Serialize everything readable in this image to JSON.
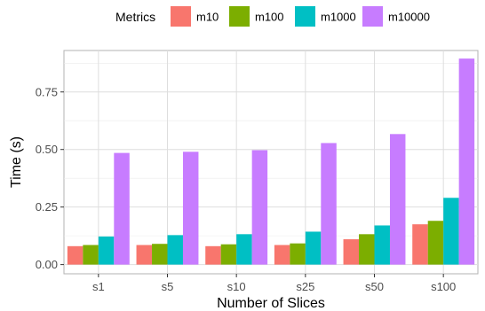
{
  "chart_data": {
    "type": "bar",
    "xlabel": "Number of Slices",
    "ylabel": "Time (s)",
    "categories": [
      "s1",
      "s5",
      "s10",
      "s25",
      "s50",
      "s100"
    ],
    "ylim": [
      -0.04,
      0.93
    ],
    "yticks": [
      0.0,
      0.25,
      0.5,
      0.75
    ],
    "ytick_labels": [
      "0.00",
      "0.25",
      "0.50",
      "0.75"
    ],
    "grid": true,
    "legend": {
      "title": "Metrics",
      "position": "top"
    },
    "series": [
      {
        "name": "m10",
        "color": "#F8766D",
        "values": [
          0.08,
          0.085,
          0.08,
          0.085,
          0.11,
          0.175
        ]
      },
      {
        "name": "m100",
        "color": "#7CAE00",
        "values": [
          0.085,
          0.09,
          0.088,
          0.092,
          0.132,
          0.19
        ]
      },
      {
        "name": "m1000",
        "color": "#00BFC4",
        "values": [
          0.122,
          0.128,
          0.132,
          0.143,
          0.17,
          0.29
        ]
      },
      {
        "name": "m10000",
        "color": "#C77CFF",
        "values": [
          0.485,
          0.49,
          0.497,
          0.528,
          0.567,
          0.895
        ]
      }
    ]
  }
}
